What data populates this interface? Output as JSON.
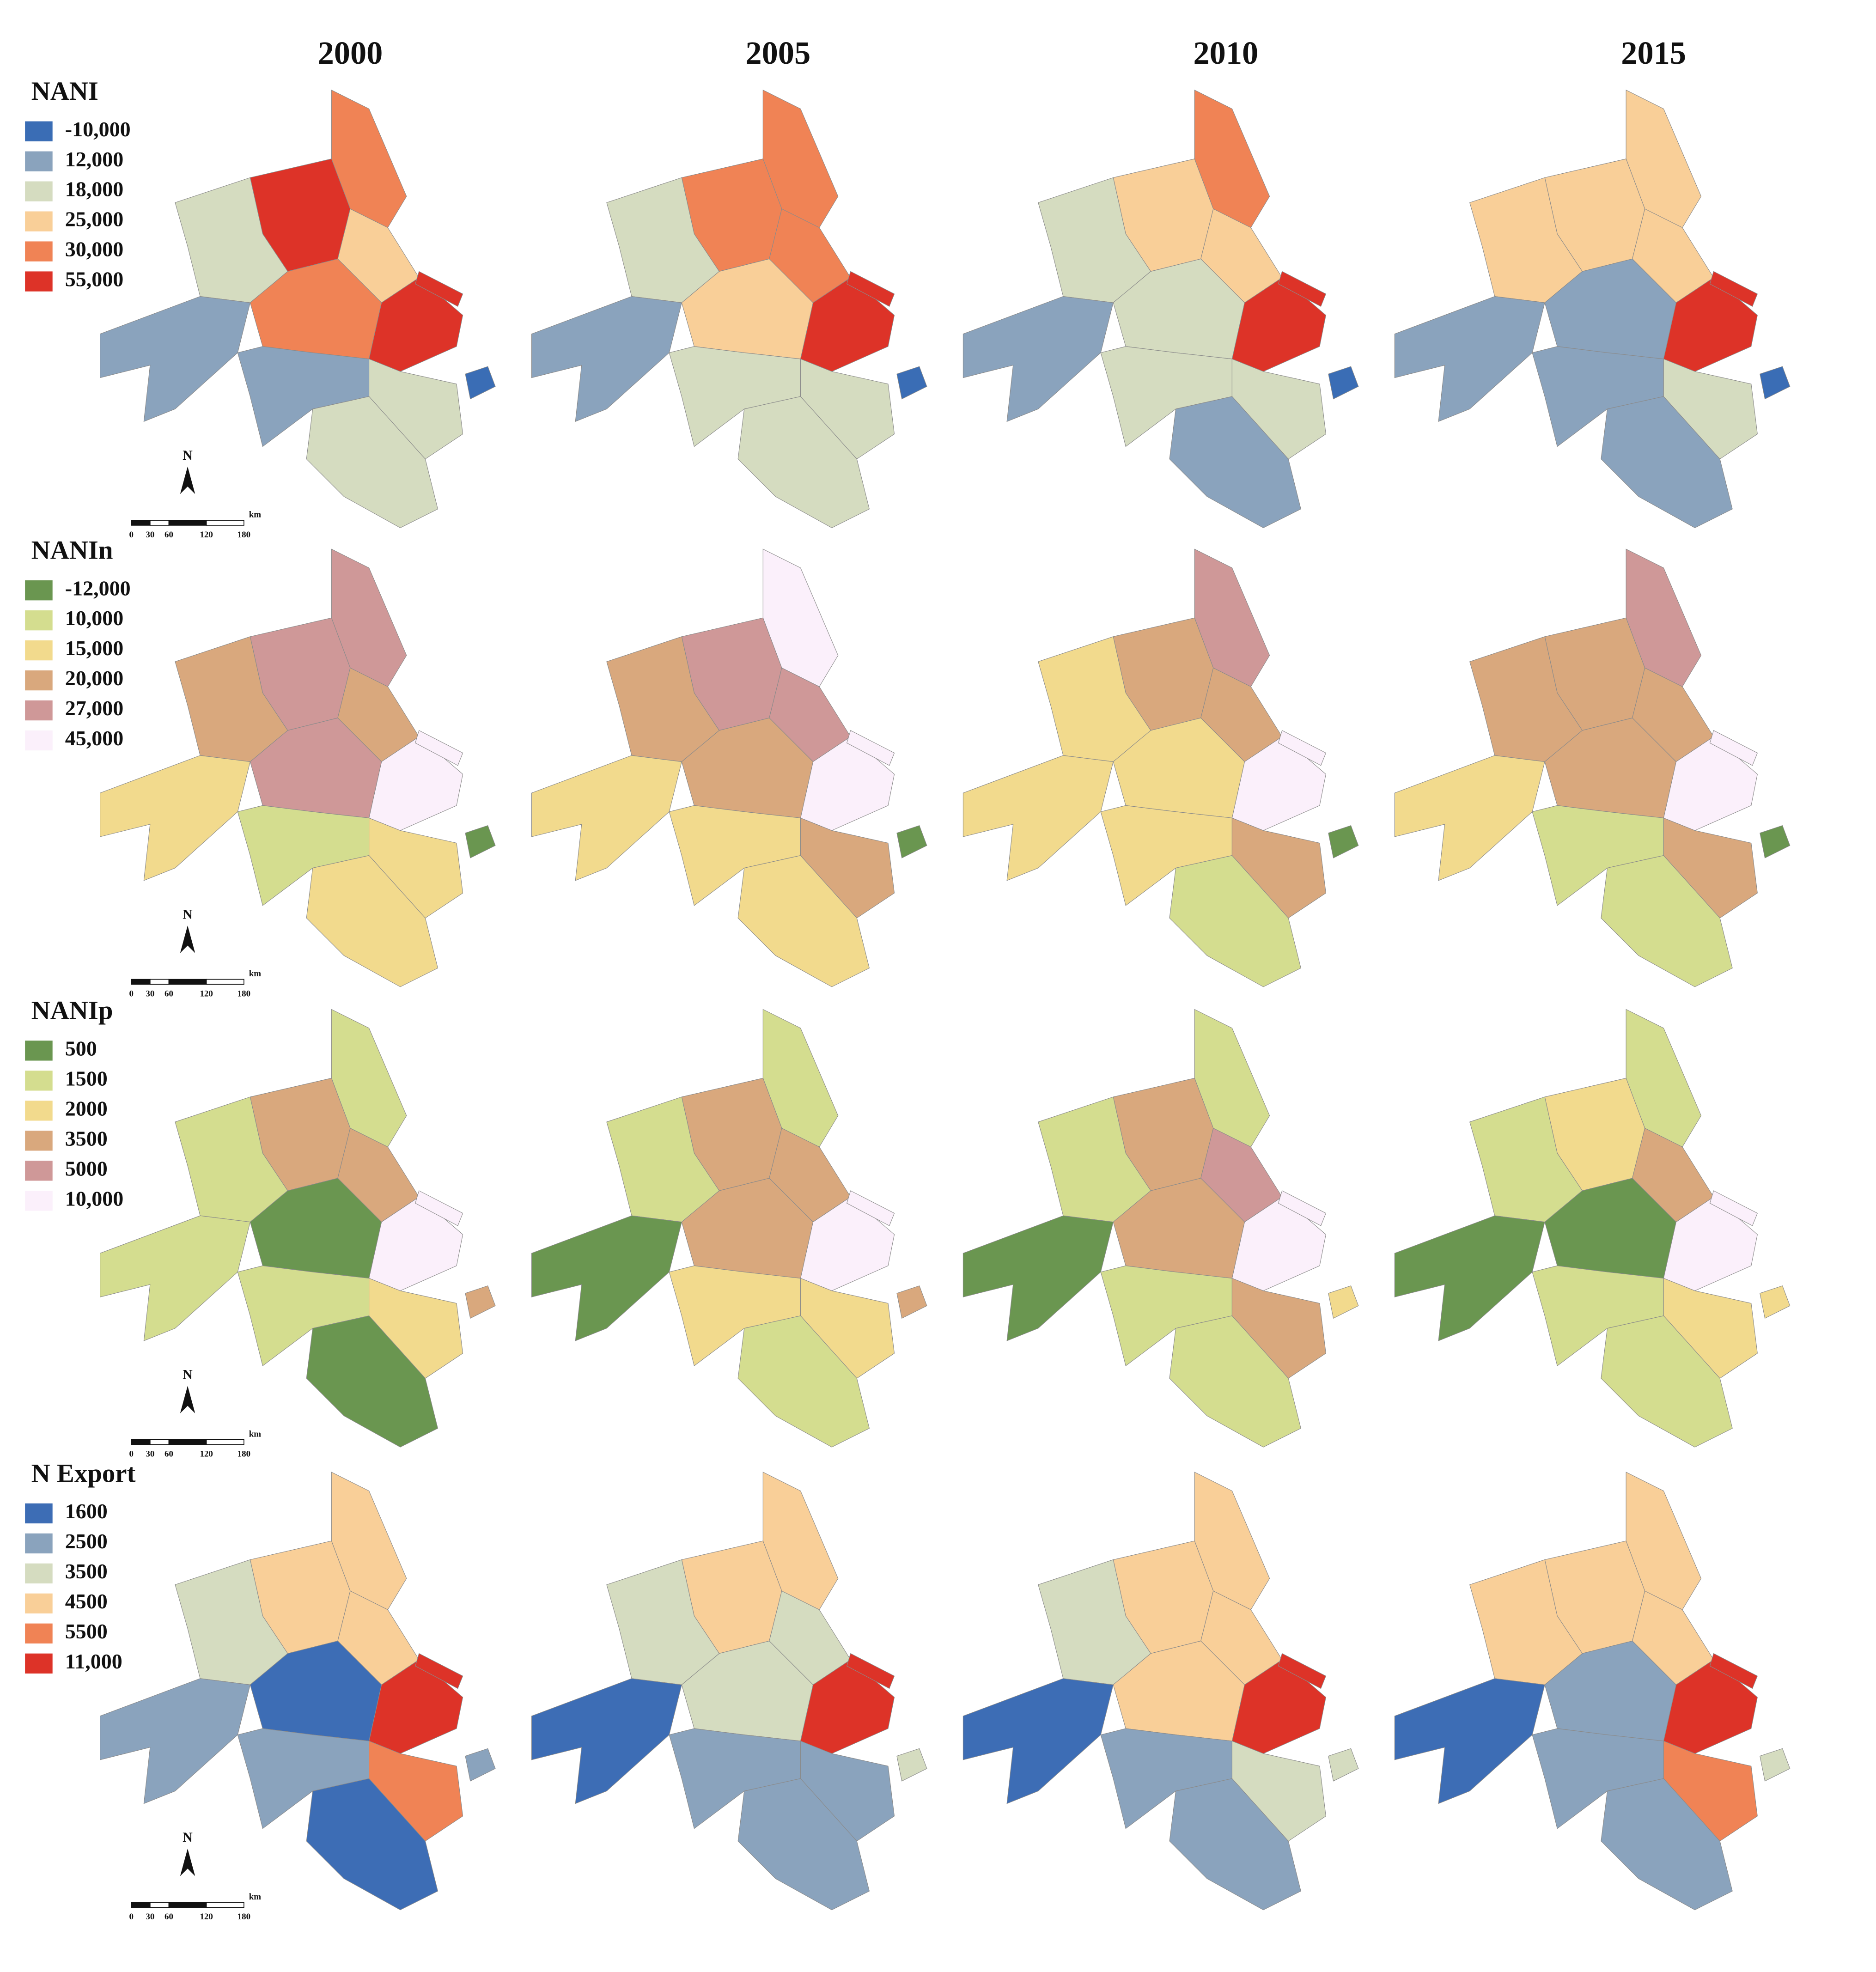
{
  "header": {
    "years": [
      "2000",
      "2005",
      "2010",
      "2015"
    ]
  },
  "rows": [
    {
      "title": "NANI",
      "legend": [
        {
          "label": "-10,000",
          "color": "#3a6db5"
        },
        {
          "label": "12,000",
          "color": "#8aa3bd"
        },
        {
          "label": "18,000",
          "color": "#d5dcc0"
        },
        {
          "label": "25,000",
          "color": "#f9cf98"
        },
        {
          "label": "30,000",
          "color": "#f08355"
        },
        {
          "label": "55,000",
          "color": "#dd3328"
        }
      ]
    },
    {
      "title": "NANIn",
      "legend": [
        {
          "label": "-12,000",
          "color": "#6a9650"
        },
        {
          "label": "10,000",
          "color": "#d4dd8f"
        },
        {
          "label": "15,000",
          "color": "#f2da8d"
        },
        {
          "label": "20,000",
          "color": "#d9a87d"
        },
        {
          "label": "27,000",
          "color": "#cf9898"
        },
        {
          "label": "45,000",
          "color": "#fbf0fb"
        }
      ]
    },
    {
      "title": "NANIp",
      "legend": [
        {
          "label": "500",
          "color": "#6a9650"
        },
        {
          "label": "1500",
          "color": "#d4dd8f"
        },
        {
          "label": "2000",
          "color": "#f2da8d"
        },
        {
          "label": "3500",
          "color": "#d9a87d"
        },
        {
          "label": "5000",
          "color": "#cf9898"
        },
        {
          "label": "10,000",
          "color": "#fbf0fb"
        }
      ]
    },
    {
      "title": "N Export",
      "legend": [
        {
          "label": "1600",
          "color": "#3d6db5"
        },
        {
          "label": "2500",
          "color": "#8aa3bd"
        },
        {
          "label": "3500",
          "color": "#d5dcc0"
        },
        {
          "label": "4500",
          "color": "#f9cf98"
        },
        {
          "label": "5500",
          "color": "#f08355"
        },
        {
          "label": "11,000",
          "color": "#dd3328"
        }
      ]
    }
  ],
  "scale_bar": {
    "north": "N",
    "unit": "km",
    "ticks": [
      "0",
      "30",
      "60",
      "120",
      "180"
    ]
  }
}
